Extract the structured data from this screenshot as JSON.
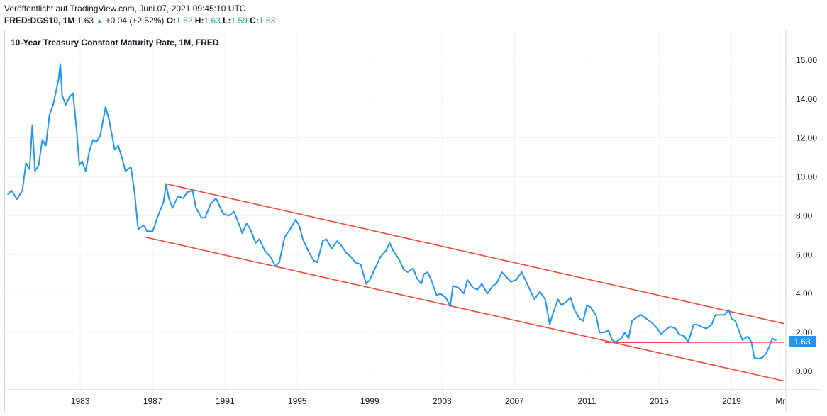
{
  "header": {
    "published": "Veröffentlicht auf TradingView.com, Juni 07, 2021 09:45:10 UTC",
    "symbol": "FRED:DGS10, 1M",
    "last": "1.63",
    "change": "+0.04 (+2.52%)",
    "o_label": "O:",
    "o_value": "1.62",
    "h_label": "H:",
    "h_value": "1.63",
    "l_label": "L:",
    "l_value": "1.59",
    "c_label": "C:",
    "c_value": "1.63",
    "up_color": "#26a69a"
  },
  "chart_data": {
    "type": "line",
    "title": "10-Year Treasury Constant Maturity Rate, 1M, FRED",
    "x_ticks": [
      "1983",
      "1987",
      "1991",
      "1995",
      "1999",
      "2003",
      "2007",
      "2011",
      "2015",
      "2019",
      "Mr"
    ],
    "y_ticks": [
      "0.00",
      "2.00",
      "4.00",
      "6.00",
      "8.00",
      "10.00",
      "12.00",
      "14.00",
      "16.00"
    ],
    "xlim": [
      1978.8,
      2022.0
    ],
    "ylim": [
      -0.95,
      17.2
    ],
    "grid": true,
    "line_color": "#2196f3",
    "trendline_color": "#f0483a",
    "last_price_label": "1.63",
    "series": [
      {
        "values": [
          [
            1979.0,
            9.1
          ],
          [
            1979.2,
            9.3
          ],
          [
            1979.5,
            8.85
          ],
          [
            1979.8,
            9.3
          ],
          [
            1980.0,
            10.7
          ],
          [
            1980.2,
            10.4
          ],
          [
            1980.35,
            12.65
          ],
          [
            1980.5,
            10.3
          ],
          [
            1980.7,
            10.6
          ],
          [
            1980.9,
            11.9
          ],
          [
            1981.1,
            11.6
          ],
          [
            1981.3,
            13.2
          ],
          [
            1981.5,
            13.7
          ],
          [
            1981.8,
            15.0
          ],
          [
            1981.9,
            15.8
          ],
          [
            1982.0,
            14.2
          ],
          [
            1982.2,
            13.7
          ],
          [
            1982.4,
            14.1
          ],
          [
            1982.6,
            14.3
          ],
          [
            1982.8,
            12.4
          ],
          [
            1982.95,
            10.6
          ],
          [
            1983.1,
            10.8
          ],
          [
            1983.3,
            10.3
          ],
          [
            1983.5,
            11.3
          ],
          [
            1983.7,
            11.9
          ],
          [
            1983.9,
            11.8
          ],
          [
            1984.1,
            12.1
          ],
          [
            1984.4,
            13.6
          ],
          [
            1984.6,
            12.9
          ],
          [
            1984.9,
            11.4
          ],
          [
            1985.1,
            11.6
          ],
          [
            1985.3,
            11.0
          ],
          [
            1985.5,
            10.3
          ],
          [
            1985.8,
            10.5
          ],
          [
            1986.0,
            9.2
          ],
          [
            1986.2,
            7.3
          ],
          [
            1986.5,
            7.5
          ],
          [
            1986.7,
            7.2
          ],
          [
            1987.0,
            7.2
          ],
          [
            1987.3,
            8.0
          ],
          [
            1987.6,
            8.7
          ],
          [
            1987.75,
            9.6
          ],
          [
            1987.9,
            8.9
          ],
          [
            1988.1,
            8.4
          ],
          [
            1988.4,
            9.0
          ],
          [
            1988.7,
            8.9
          ],
          [
            1988.9,
            9.2
          ],
          [
            1989.2,
            9.3
          ],
          [
            1989.4,
            8.4
          ],
          [
            1989.7,
            7.9
          ],
          [
            1989.9,
            7.9
          ],
          [
            1990.2,
            8.6
          ],
          [
            1990.5,
            8.9
          ],
          [
            1990.7,
            8.5
          ],
          [
            1990.9,
            8.1
          ],
          [
            1991.2,
            8.0
          ],
          [
            1991.5,
            8.2
          ],
          [
            1991.8,
            7.5
          ],
          [
            1991.95,
            7.1
          ],
          [
            1992.2,
            7.6
          ],
          [
            1992.4,
            7.3
          ],
          [
            1992.7,
            6.6
          ],
          [
            1992.9,
            6.8
          ],
          [
            1993.2,
            6.2
          ],
          [
            1993.5,
            5.9
          ],
          [
            1993.8,
            5.4
          ],
          [
            1994.0,
            5.6
          ],
          [
            1994.3,
            6.9
          ],
          [
            1994.6,
            7.3
          ],
          [
            1994.9,
            7.8
          ],
          [
            1995.1,
            7.5
          ],
          [
            1995.3,
            6.8
          ],
          [
            1995.6,
            6.2
          ],
          [
            1995.9,
            5.7
          ],
          [
            1996.1,
            5.6
          ],
          [
            1996.4,
            6.7
          ],
          [
            1996.6,
            6.8
          ],
          [
            1996.9,
            6.3
          ],
          [
            1997.2,
            6.7
          ],
          [
            1997.4,
            6.5
          ],
          [
            1997.7,
            6.1
          ],
          [
            1997.95,
            5.9
          ],
          [
            1998.2,
            5.6
          ],
          [
            1998.5,
            5.5
          ],
          [
            1998.8,
            4.5
          ],
          [
            1999.0,
            4.7
          ],
          [
            1999.3,
            5.3
          ],
          [
            1999.6,
            5.9
          ],
          [
            1999.9,
            6.2
          ],
          [
            2000.1,
            6.6
          ],
          [
            2000.3,
            6.2
          ],
          [
            2000.6,
            5.8
          ],
          [
            2000.9,
            5.2
          ],
          [
            2001.1,
            5.1
          ],
          [
            2001.4,
            5.3
          ],
          [
            2001.6,
            4.8
          ],
          [
            2001.85,
            4.5
          ],
          [
            2002.0,
            5.0
          ],
          [
            2002.2,
            5.1
          ],
          [
            2002.4,
            4.7
          ],
          [
            2002.7,
            3.9
          ],
          [
            2002.9,
            4.0
          ],
          [
            2003.2,
            3.8
          ],
          [
            2003.45,
            3.35
          ],
          [
            2003.6,
            4.4
          ],
          [
            2003.9,
            4.3
          ],
          [
            2004.2,
            4.0
          ],
          [
            2004.4,
            4.7
          ],
          [
            2004.7,
            4.3
          ],
          [
            2004.95,
            4.2
          ],
          [
            2005.2,
            4.5
          ],
          [
            2005.5,
            4.0
          ],
          [
            2005.8,
            4.4
          ],
          [
            2006.0,
            4.5
          ],
          [
            2006.3,
            5.1
          ],
          [
            2006.6,
            4.8
          ],
          [
            2006.8,
            4.6
          ],
          [
            2007.1,
            4.7
          ],
          [
            2007.4,
            5.1
          ],
          [
            2007.6,
            4.7
          ],
          [
            2007.9,
            4.1
          ],
          [
            2008.1,
            3.7
          ],
          [
            2008.4,
            4.1
          ],
          [
            2008.7,
            3.7
          ],
          [
            2008.95,
            2.4
          ],
          [
            2009.1,
            2.9
          ],
          [
            2009.4,
            3.7
          ],
          [
            2009.6,
            3.4
          ],
          [
            2009.9,
            3.6
          ],
          [
            2010.1,
            3.8
          ],
          [
            2010.3,
            3.2
          ],
          [
            2010.6,
            2.7
          ],
          [
            2010.8,
            2.6
          ],
          [
            2011.0,
            3.4
          ],
          [
            2011.2,
            3.3
          ],
          [
            2011.5,
            2.9
          ],
          [
            2011.7,
            2.0
          ],
          [
            2011.95,
            2.0
          ],
          [
            2012.2,
            2.1
          ],
          [
            2012.4,
            1.6
          ],
          [
            2012.6,
            1.5
          ],
          [
            2012.9,
            1.7
          ],
          [
            2013.1,
            2.0
          ],
          [
            2013.3,
            1.7
          ],
          [
            2013.5,
            2.6
          ],
          [
            2013.8,
            2.8
          ],
          [
            2014.0,
            2.9
          ],
          [
            2014.3,
            2.7
          ],
          [
            2014.6,
            2.5
          ],
          [
            2014.9,
            2.2
          ],
          [
            2015.1,
            1.9
          ],
          [
            2015.3,
            2.1
          ],
          [
            2015.6,
            2.3
          ],
          [
            2015.9,
            2.2
          ],
          [
            2016.1,
            1.9
          ],
          [
            2016.4,
            1.8
          ],
          [
            2016.6,
            1.5
          ],
          [
            2016.9,
            2.4
          ],
          [
            2017.1,
            2.4
          ],
          [
            2017.3,
            2.3
          ],
          [
            2017.6,
            2.2
          ],
          [
            2017.9,
            2.4
          ],
          [
            2018.1,
            2.9
          ],
          [
            2018.4,
            2.9
          ],
          [
            2018.6,
            2.9
          ],
          [
            2018.85,
            3.15
          ],
          [
            2019.0,
            2.7
          ],
          [
            2019.2,
            2.6
          ],
          [
            2019.4,
            2.1
          ],
          [
            2019.6,
            1.6
          ],
          [
            2019.9,
            1.8
          ],
          [
            2020.1,
            1.5
          ],
          [
            2020.25,
            0.7
          ],
          [
            2020.5,
            0.65
          ],
          [
            2020.7,
            0.7
          ],
          [
            2020.9,
            0.9
          ],
          [
            2021.1,
            1.3
          ],
          [
            2021.25,
            1.7
          ],
          [
            2021.4,
            1.6
          ],
          [
            2021.45,
            1.63
          ]
        ]
      }
    ],
    "trendlines": [
      {
        "x1": 1986.6,
        "y1": 6.9,
        "x2": 2021.9,
        "y2": -0.5
      },
      {
        "x1": 1987.7,
        "y1": 9.65,
        "x2": 2021.9,
        "y2": 2.45
      },
      {
        "x1": 2012.0,
        "y1": 1.48,
        "x2": 2021.9,
        "y2": 1.5
      }
    ]
  }
}
